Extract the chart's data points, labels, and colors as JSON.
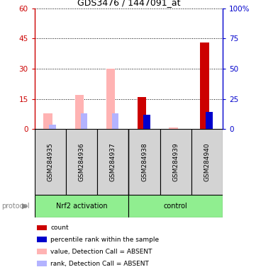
{
  "title": "GDS3476 / 1447091_at",
  "samples": [
    "GSM284935",
    "GSM284936",
    "GSM284937",
    "GSM284938",
    "GSM284939",
    "GSM284940"
  ],
  "absent": [
    true,
    true,
    true,
    false,
    true,
    false
  ],
  "count_values": [
    8.0,
    0.0,
    0.0,
    16.0,
    0.0,
    43.0
  ],
  "rank_values": [
    4.0,
    13.0,
    13.0,
    12.0,
    0.0,
    14.0
  ],
  "value_absent": [
    8.0,
    17.0,
    30.0,
    0.0,
    1.0,
    0.0
  ],
  "rank_absent": [
    4.0,
    13.0,
    13.0,
    0.0,
    0.5,
    0.0
  ],
  "ylim_left": [
    0,
    60
  ],
  "ylim_right": [
    0,
    100
  ],
  "yticks_left": [
    0,
    15,
    30,
    45,
    60
  ],
  "ytick_labels_left": [
    "0",
    "15",
    "30",
    "45",
    "60"
  ],
  "ytick_labels_right": [
    "0",
    "25",
    "50",
    "75",
    "100%"
  ],
  "left_axis_color": "#cc0000",
  "right_axis_color": "#0000cc",
  "background_color": "#ffffff",
  "legend_items": [
    {
      "label": "count",
      "color": "#cc0000"
    },
    {
      "label": "percentile rank within the sample",
      "color": "#0000cc"
    },
    {
      "label": "value, Detection Call = ABSENT",
      "color": "#ffb3b3"
    },
    {
      "label": "rank, Detection Call = ABSENT",
      "color": "#b3b3ff"
    }
  ],
  "group1_label": "Nrf2 activation",
  "group2_label": "control",
  "protocol_label": "protocol",
  "group_bg": "#90EE90",
  "sample_bg": "#d3d3d3"
}
